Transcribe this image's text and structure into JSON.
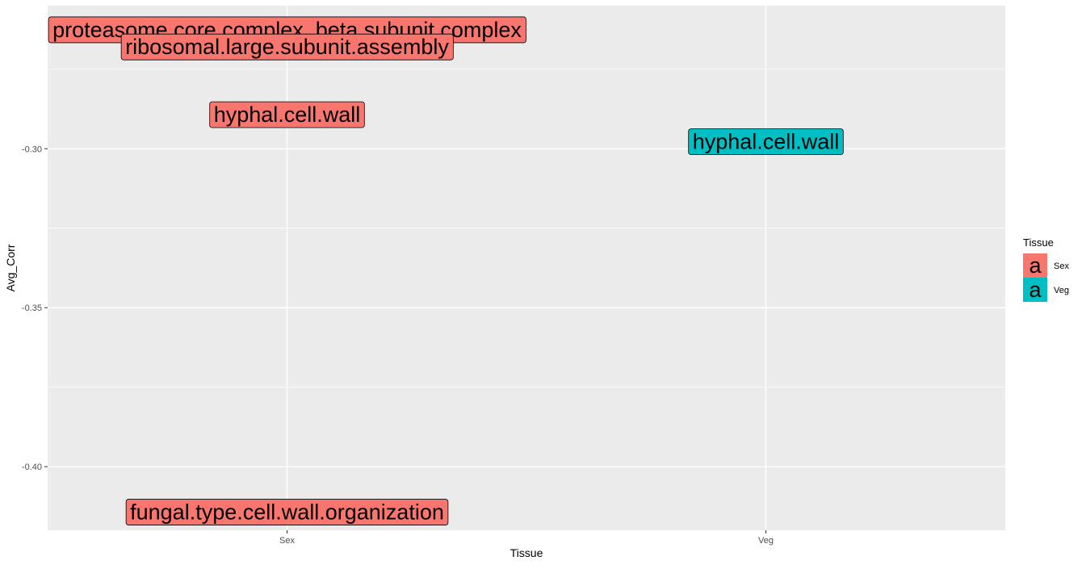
{
  "chart_data": {
    "type": "scatter",
    "title": "",
    "xlabel": "Tissue",
    "ylabel": "Avg_Corr",
    "categories": [
      "Sex",
      "Veg"
    ],
    "ylim": [
      -0.42,
      -0.255
    ],
    "y_ticks": [
      -0.3,
      -0.35,
      -0.4
    ],
    "y_tick_labels": [
      "-0.30",
      "-0.35",
      "-0.40"
    ],
    "grid": true,
    "legend": {
      "title": "Tissue",
      "position": "right",
      "glyph": "a",
      "entries": [
        {
          "label": "Sex",
          "color": "#F8766D"
        },
        {
          "label": "Veg",
          "color": "#00BFC4"
        }
      ]
    },
    "points": [
      {
        "x": "Sex",
        "y": -0.2626,
        "label": "proteasome.core.complex..beta.subunit.complex",
        "tissue": "Sex"
      },
      {
        "x": "Sex",
        "y": -0.268,
        "label": "ribosomal.large.subunit.assembly",
        "tissue": "Sex"
      },
      {
        "x": "Sex",
        "y": -0.2893,
        "label": "hyphal.cell.wall",
        "tissue": "Sex"
      },
      {
        "x": "Veg",
        "y": -0.2978,
        "label": "hyphal.cell.wall",
        "tissue": "Veg"
      },
      {
        "x": "Sex",
        "y": -0.4143,
        "label": "fungal.type.cell.wall.organization",
        "tissue": "Sex"
      }
    ],
    "colors": {
      "panel_background": "#EBEBEB",
      "grid": "#FFFFFF",
      "Sex": "#F8766D",
      "Veg": "#00BFC4"
    }
  }
}
